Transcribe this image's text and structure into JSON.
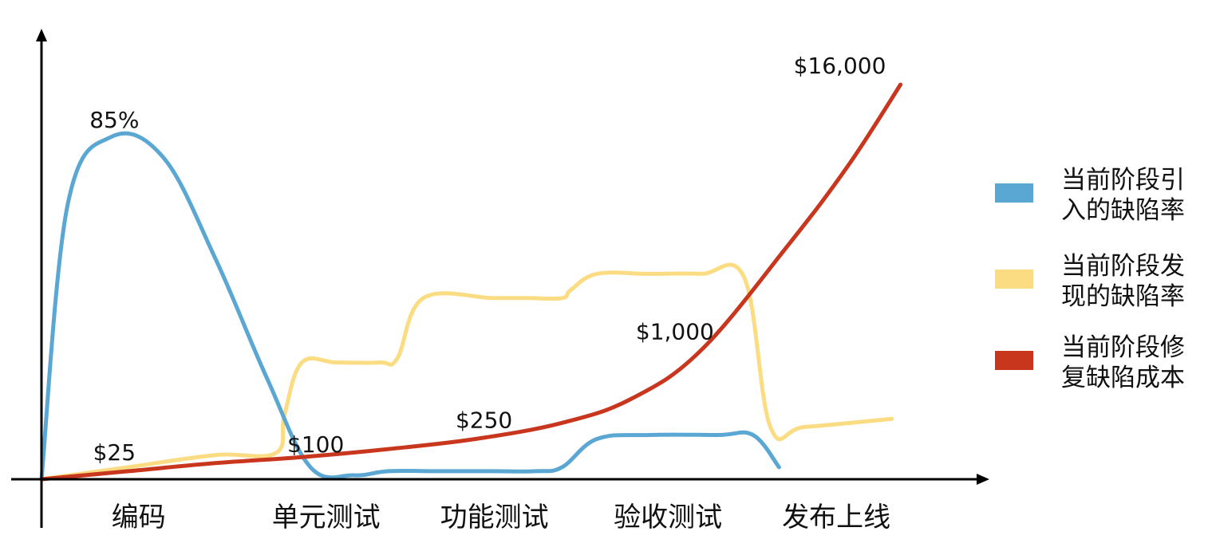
{
  "chart_data": {
    "type": "line",
    "title": "",
    "xlabel": "",
    "ylabel": "",
    "categories": [
      "编码",
      "单元测试",
      "功能测试",
      "验收测试",
      "发布上线"
    ],
    "series": [
      {
        "name_lines": [
          "当前阶段引",
          "入的缺陷率"
        ],
        "color": "#5ba7d4",
        "x": [
          0,
          0.15,
          0.4,
          0.7,
          1.0,
          1.3,
          1.55,
          1.8,
          2.0,
          2.3,
          2.6,
          2.85,
          3.0,
          3.2,
          3.5,
          3.9,
          4.1,
          4.25
        ],
        "values": [
          0,
          68,
          85,
          80,
          55,
          25,
          3,
          1,
          2,
          2,
          2,
          2,
          3,
          10,
          11,
          11,
          11,
          3
        ]
      },
      {
        "name_lines": [
          "当前阶段发",
          "现的缺陷率"
        ],
        "color": "#fbdc82",
        "x": [
          0,
          0.5,
          1.0,
          1.35,
          1.4,
          1.5,
          1.7,
          1.95,
          2.05,
          2.2,
          2.6,
          2.8,
          3.0,
          3.05,
          3.2,
          3.5,
          3.8,
          4.05,
          4.2,
          4.4,
          4.9
        ],
        "values": [
          0,
          3,
          6,
          6.5,
          16,
          29,
          29,
          29,
          30,
          45,
          45,
          45,
          45,
          47,
          51,
          51,
          51,
          50,
          13,
          13,
          15
        ]
      },
      {
        "name_lines": [
          "当前阶段修",
          "复缺陷成本"
        ],
        "color": "#c9361e",
        "x": [
          0,
          0.5,
          1.0,
          1.5,
          2.0,
          2.5,
          3.0,
          3.4,
          3.8,
          4.3,
          4.65,
          4.95
        ],
        "values": [
          0,
          2,
          4,
          5.5,
          7.5,
          10,
          14,
          20,
          32,
          58,
          78,
          98
        ]
      }
    ],
    "annotations": [
      {
        "text": "85%",
        "x": 0.42,
        "y": 85
      },
      {
        "text": "$25",
        "x": 0.42,
        "y": 2
      },
      {
        "text": "$100",
        "x": 1.58,
        "y": 4
      },
      {
        "text": "$250",
        "x": 2.55,
        "y": 10
      },
      {
        "text": "$1,000",
        "x": 3.65,
        "y": 32
      },
      {
        "text": "$16,000",
        "x": 4.6,
        "y": 98
      }
    ],
    "legend_position": "right",
    "grid": false,
    "xlim": [
      -0.4,
      5.5
    ],
    "ylim": [
      -4,
      106
    ]
  }
}
